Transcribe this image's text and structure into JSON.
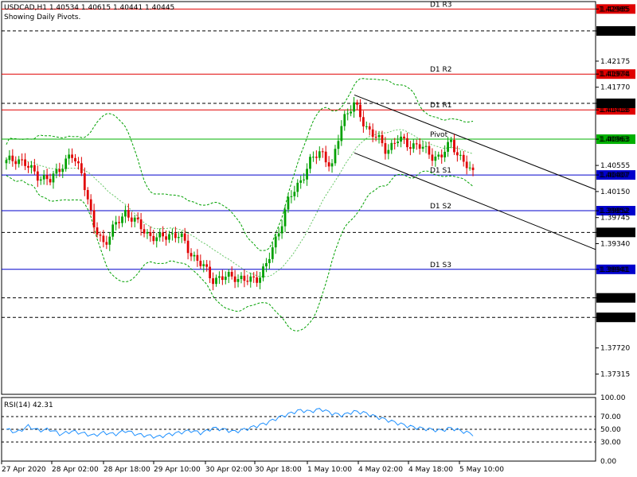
{
  "header": {
    "symbol_line": "USDCAD,H1  1.40534 1.40615 1.40441 1.40445",
    "subtitle": "Showing Daily Pivots."
  },
  "colors": {
    "resistance": "#e00000",
    "pivot": "#00b000",
    "support": "#0000cc",
    "dashed_level": "#000000",
    "bull_candle": "#00a000",
    "bear_candle": "#e00000",
    "bands": "#00a000",
    "rsi": "#1e90ff",
    "channel": "#000000"
  },
  "chart_data": [
    {
      "type": "candlestick",
      "symbol": "USDCAD",
      "timeframe": "H1",
      "ylim": [
        1.37,
        1.431
      ],
      "y_ticks": [
        "1.42985",
        "1.42644",
        "1.42175",
        "1.41974",
        "1.41770",
        "1.41520",
        "1.41418",
        "1.40963",
        "1.40555",
        "1.40407",
        "1.40150",
        "1.39852",
        "1.39745",
        "1.39515",
        "1.39340",
        "1.38941",
        "1.38498",
        "1.38195",
        "1.37720",
        "1.37315"
      ],
      "x_ticks": [
        "27 Apr 2020",
        "28 Apr 02:00",
        "28 Apr 18:00",
        "29 Apr 10:00",
        "30 Apr 02:00",
        "30 Apr 18:00",
        "1 May 10:00",
        "4 May 02:00",
        "4 May 18:00",
        "5 May 10:00"
      ],
      "pivot_levels": [
        {
          "name": "D1 R3",
          "value": 1.42985,
          "label": "1.42985",
          "kind": "resistance"
        },
        {
          "name": "D1 R2",
          "value": 1.41974,
          "label": "1.41974",
          "kind": "resistance"
        },
        {
          "name": "D1 R1",
          "value": 1.41418,
          "label": "1.41418",
          "kind": "resistance"
        },
        {
          "name": "Pivot",
          "value": 1.40963,
          "label": "1.40963",
          "kind": "pivot"
        },
        {
          "name": "D1 S1",
          "value": 1.40407,
          "label": "1.40407",
          "kind": "support"
        },
        {
          "name": "D1 S2",
          "value": 1.39852,
          "label": "1.39852",
          "kind": "support"
        },
        {
          "name": "D1 S3",
          "value": 1.38941,
          "label": "1.38941",
          "kind": "support"
        }
      ],
      "dashed_levels": [
        {
          "value": 1.42644,
          "label": "1.42644"
        },
        {
          "value": 1.4152,
          "label": "1.41520"
        },
        {
          "value": 1.39515,
          "label": "1.39515"
        },
        {
          "value": 1.38498,
          "label": "1.38498"
        },
        {
          "value": 1.38195,
          "label": "1.38195"
        }
      ],
      "close_anchors": [
        1.406,
        1.4068,
        1.4052,
        1.404,
        1.403,
        1.4055,
        1.407,
        1.4045,
        1.396,
        1.3935,
        1.396,
        1.3985,
        1.3965,
        1.395,
        1.394,
        1.395,
        1.3945,
        1.392,
        1.39,
        1.388,
        1.388,
        1.3885,
        1.3875,
        1.388,
        1.39,
        1.395,
        1.4,
        1.403,
        1.406,
        1.408,
        1.405,
        1.413,
        1.415,
        1.412,
        1.41,
        1.408,
        1.4095,
        1.409,
        1.4085,
        1.4075,
        1.4065,
        1.4095,
        1.406,
        1.4045
      ],
      "channel": {
        "upper": {
          "from": [
            0,
            1.4165
          ],
          "to": [
            1,
            1.4018
          ]
        },
        "lower": {
          "from": [
            0,
            1.4075
          ],
          "to": [
            1,
            1.3925
          ]
        }
      }
    },
    {
      "type": "line",
      "indicator": "RSI(14)",
      "title": "RSI(14) 42.31",
      "value": 42.31,
      "ylim": [
        0,
        100
      ],
      "y_ticks": [
        "100.00",
        "70.00",
        "50.00",
        "30.00",
        "0.00"
      ],
      "levels": [
        70,
        50,
        30
      ],
      "anchors": [
        50,
        45,
        55,
        48,
        50,
        42,
        47,
        44,
        40,
        45,
        42,
        48,
        42,
        40,
        38,
        42,
        45,
        48,
        44,
        52,
        50,
        46,
        50,
        55,
        60,
        68,
        74,
        80,
        78,
        82,
        75,
        72,
        78,
        76,
        70,
        65,
        60,
        55,
        52,
        50,
        48,
        52,
        47,
        42.31
      ]
    }
  ]
}
